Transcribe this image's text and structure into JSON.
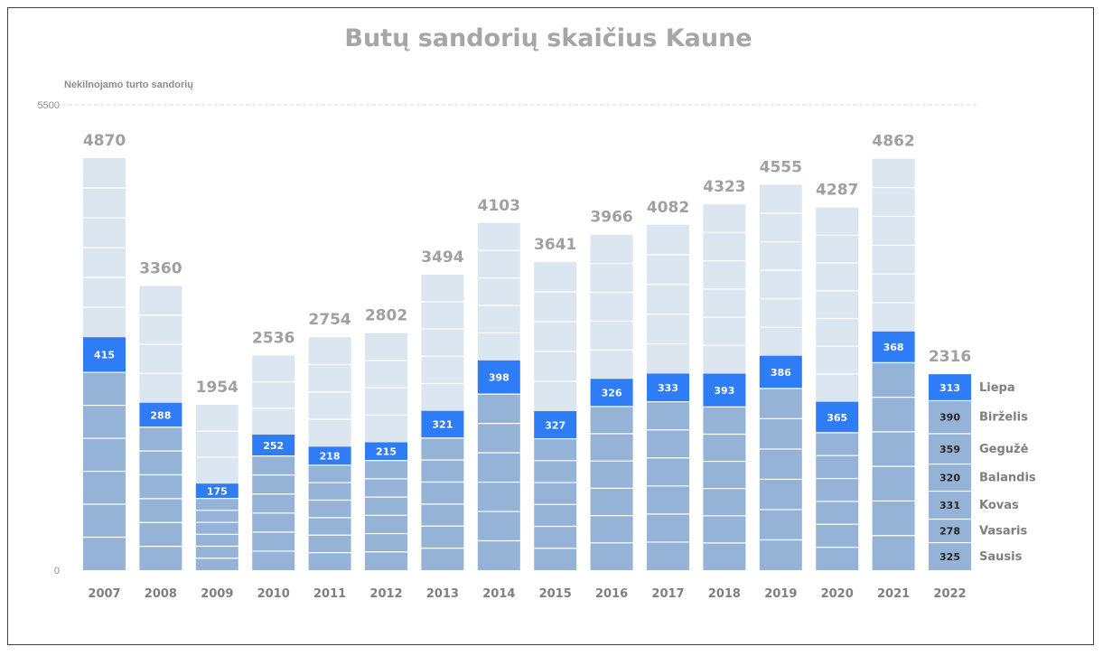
{
  "chart_data": {
    "type": "bar",
    "title": "Butų sandorių skaičius Kaune",
    "ylabel": "Nekilnojamo  turto sandorių",
    "ylim": [
      0,
      5500
    ],
    "yticks": [
      0,
      5500
    ],
    "grid": "dashed line at top only",
    "categories": [
      "2007",
      "2008",
      "2009",
      "2010",
      "2011",
      "2012",
      "2013",
      "2014",
      "2015",
      "2016",
      "2017",
      "2018",
      "2019",
      "2020",
      "2021",
      "2022"
    ],
    "totals": [
      4870,
      3360,
      1954,
      2536,
      2754,
      2802,
      3494,
      4103,
      3641,
      3966,
      4082,
      4323,
      4555,
      4287,
      4862,
      2316
    ],
    "series": [
      {
        "name": "Sausis–Birželis",
        "values": [
          2338,
          1690,
          848,
          1350,
          1241,
          1296,
          1562,
          2081,
          1553,
          1935,
          1990,
          1929,
          2148,
          1625,
          2453,
          2003
        ]
      },
      {
        "name": "Liepa",
        "values": [
          415,
          288,
          175,
          252,
          218,
          215,
          321,
          398,
          327,
          326,
          333,
          393,
          386,
          365,
          368,
          313
        ]
      }
    ],
    "months_2022": [
      {
        "name": "Sausis",
        "value": 325
      },
      {
        "name": "Vasaris",
        "value": 278
      },
      {
        "name": "Kovas",
        "value": 331
      },
      {
        "name": "Balandis",
        "value": 320
      },
      {
        "name": "Gegužė",
        "value": 359
      },
      {
        "name": "Birželis",
        "value": 390
      },
      {
        "name": "Liepa",
        "value": 313
      }
    ],
    "colors": {
      "lower": "#95b3d7",
      "highlight": "#2e7cf6",
      "upper": "#dce6f1",
      "separator": "#ffffff",
      "gridline": "#d9d9d9"
    }
  }
}
